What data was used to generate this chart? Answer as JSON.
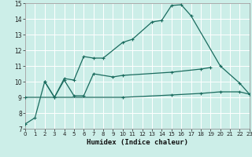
{
  "xlabel": "Humidex (Indice chaleur)",
  "bg_color": "#cceee8",
  "plot_bg_color": "#cceee8",
  "grid_color": "#ffffff",
  "line_color": "#1a6b5e",
  "series1": {
    "x": [
      0,
      1,
      2,
      3,
      4,
      5,
      6,
      7,
      8,
      10,
      11,
      13,
      14,
      15,
      16,
      17,
      20,
      22,
      23
    ],
    "y": [
      7.3,
      7.7,
      10.0,
      9.0,
      10.2,
      10.1,
      11.6,
      11.5,
      11.5,
      12.5,
      12.7,
      13.8,
      13.9,
      14.85,
      14.9,
      14.2,
      11.0,
      9.9,
      9.2
    ]
  },
  "series2": {
    "x": [
      2,
      3,
      4,
      5,
      6,
      7,
      9,
      10,
      15,
      18,
      19
    ],
    "y": [
      10.0,
      9.0,
      10.1,
      9.1,
      9.1,
      10.5,
      10.3,
      10.4,
      10.6,
      10.8,
      10.9
    ]
  },
  "series3": {
    "x": [
      0,
      10,
      15,
      18,
      20,
      22,
      23
    ],
    "y": [
      9.0,
      9.0,
      9.15,
      9.25,
      9.35,
      9.35,
      9.2
    ]
  },
  "xlim": [
    0,
    23
  ],
  "ylim": [
    7,
    15
  ],
  "yticks": [
    7,
    8,
    9,
    10,
    11,
    12,
    13,
    14,
    15
  ],
  "xticks": [
    0,
    1,
    2,
    3,
    4,
    5,
    6,
    7,
    8,
    9,
    10,
    11,
    12,
    13,
    14,
    15,
    16,
    17,
    18,
    19,
    20,
    21,
    22,
    23
  ],
  "xlabel_fontsize": 6.5,
  "tick_fontsize": 5,
  "line_width": 0.9,
  "marker_size": 3
}
